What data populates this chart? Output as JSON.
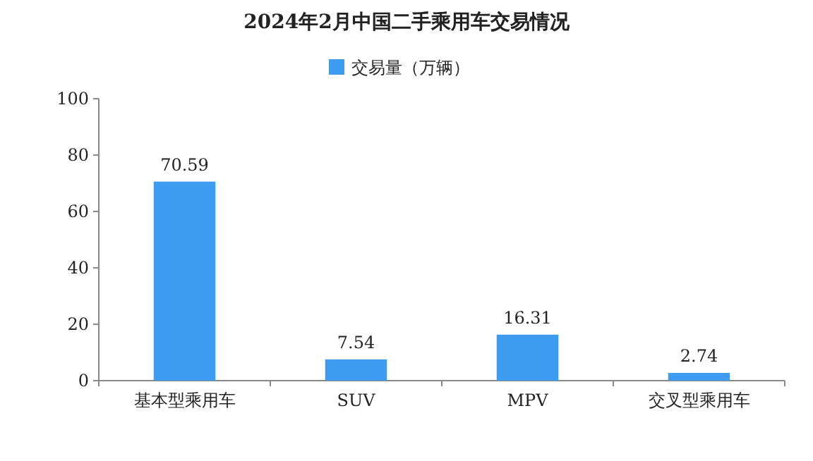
{
  "chart_data": {
    "type": "bar",
    "title": "2024年2月中国二手乘用车交易情况",
    "categories": [
      "基本型乘用车",
      "SUV",
      "MPV",
      "交叉型乘用车"
    ],
    "series": [
      {
        "name": "交易量（万辆）",
        "color": "#3d9cf0",
        "values": [
          70.59,
          7.54,
          16.31,
          2.74
        ]
      }
    ],
    "ylim": [
      0,
      100
    ],
    "yticks": [
      0,
      20,
      40,
      60,
      80,
      100
    ],
    "data_labels": true,
    "legend": "top"
  }
}
